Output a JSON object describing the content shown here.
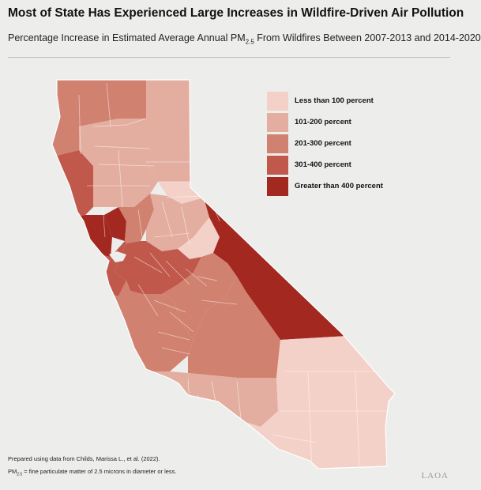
{
  "header": {
    "title": "Most of State Has Experienced Large Increases in Wildfire-Driven Air Pollution",
    "subtitle_before": "Percentage Increase in Estimated Average Annual PM",
    "subtitle_sub": "2.5",
    "subtitle_after": " From Wildfires Between 2007-2013 and 2014-2020"
  },
  "legend": {
    "items": [
      {
        "label": "Less than 100 percent",
        "color": "#f4d1c8"
      },
      {
        "label": "101-200 percent",
        "color": "#e3aea0"
      },
      {
        "label": "201-300 percent",
        "color": "#d1816f"
      },
      {
        "label": "301-400 percent",
        "color": "#c0584b"
      },
      {
        "label": "Greater than 400 percent",
        "color": "#a32820"
      }
    ]
  },
  "map": {
    "region": "California counties",
    "regions": [
      {
        "name": "northwest",
        "category": 3
      },
      {
        "name": "northeast",
        "category": 2
      },
      {
        "name": "north-coast",
        "category": 4
      },
      {
        "name": "upper-sacramento-valley",
        "category": 2
      },
      {
        "name": "upper-sierra",
        "category": 1
      },
      {
        "name": "bay-north",
        "category": 5
      },
      {
        "name": "napa-solano",
        "category": 5
      },
      {
        "name": "sacramento",
        "category": 3
      },
      {
        "name": "central-sierra",
        "category": 2
      },
      {
        "name": "alpine-mono-west",
        "category": 1
      },
      {
        "name": "inyo-mono-east",
        "category": 5
      },
      {
        "name": "bay-south",
        "category": 4
      },
      {
        "name": "central-valley",
        "category": 4
      },
      {
        "name": "central-coast",
        "category": 3
      },
      {
        "name": "south-valley",
        "category": 3
      },
      {
        "name": "tulare-kern-east",
        "category": 3
      },
      {
        "name": "santa-barbara-ventura",
        "category": 2
      },
      {
        "name": "los-angeles",
        "category": 2
      },
      {
        "name": "southeast-desert",
        "category": 1
      },
      {
        "name": "san-diego",
        "category": 1
      }
    ]
  },
  "notes": {
    "source": "Prepared using data from Childs, Marissa L., et al. (2022).",
    "def_before": "PM",
    "def_sub": "2.5",
    "def_after": " = fine particulate matter of 2.5 microns in diameter or less."
  },
  "logo": "LAOA"
}
